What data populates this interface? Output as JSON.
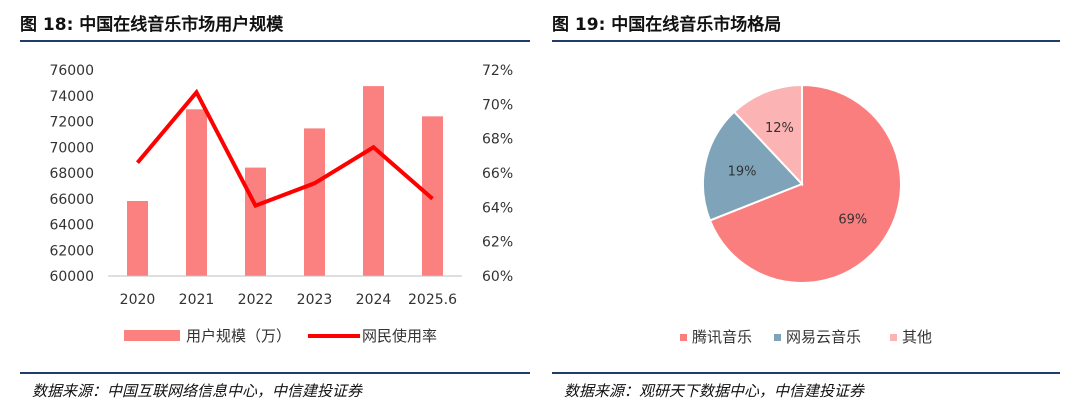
{
  "left": {
    "title": "图 18:  中国在线音乐市场用户规模",
    "source": "数据来源：中国互联网络信息中心，中信建投证券"
  },
  "right": {
    "title": "图 19:  中国在线音乐市场格局",
    "source": "数据来源：观研天下数据中心，中信建投证券"
  },
  "chart_data": [
    {
      "type": "bar",
      "categories": [
        "2020",
        "2021",
        "2022",
        "2023",
        "2024",
        "2025.6"
      ],
      "series": [
        {
          "name": "用户规模（万）",
          "type": "bar",
          "axis": "left",
          "values": [
            65825,
            72946,
            68420,
            71464,
            74747,
            72402
          ]
        },
        {
          "name": "网民使用率",
          "type": "line",
          "axis": "right",
          "values": [
            66.6,
            70.7,
            64.1,
            65.4,
            67.5,
            64.5
          ]
        }
      ],
      "y_left": {
        "min": 60000,
        "max": 76000,
        "step": 2000,
        "ticks": [
          "60000",
          "62000",
          "64000",
          "66000",
          "68000",
          "70000",
          "72000",
          "74000",
          "76000"
        ]
      },
      "y_right": {
        "min": 60,
        "max": 72,
        "step": 2,
        "ticks": [
          "60%",
          "62%",
          "64%",
          "66%",
          "68%",
          "70%",
          "72%"
        ]
      },
      "grid": false,
      "legend": "bottom",
      "colors": {
        "bar": "#fb8080",
        "line": "#ff0000"
      }
    },
    {
      "type": "pie",
      "labels": [
        "腾讯音乐",
        "网易云音乐",
        "其他"
      ],
      "values": [
        69,
        19,
        12
      ],
      "value_labels": [
        "69%",
        "19%",
        "12%"
      ],
      "colors": [
        "#fb7e7e",
        "#7fa4ba",
        "#fbb3b3"
      ],
      "legend": "bottom"
    }
  ]
}
